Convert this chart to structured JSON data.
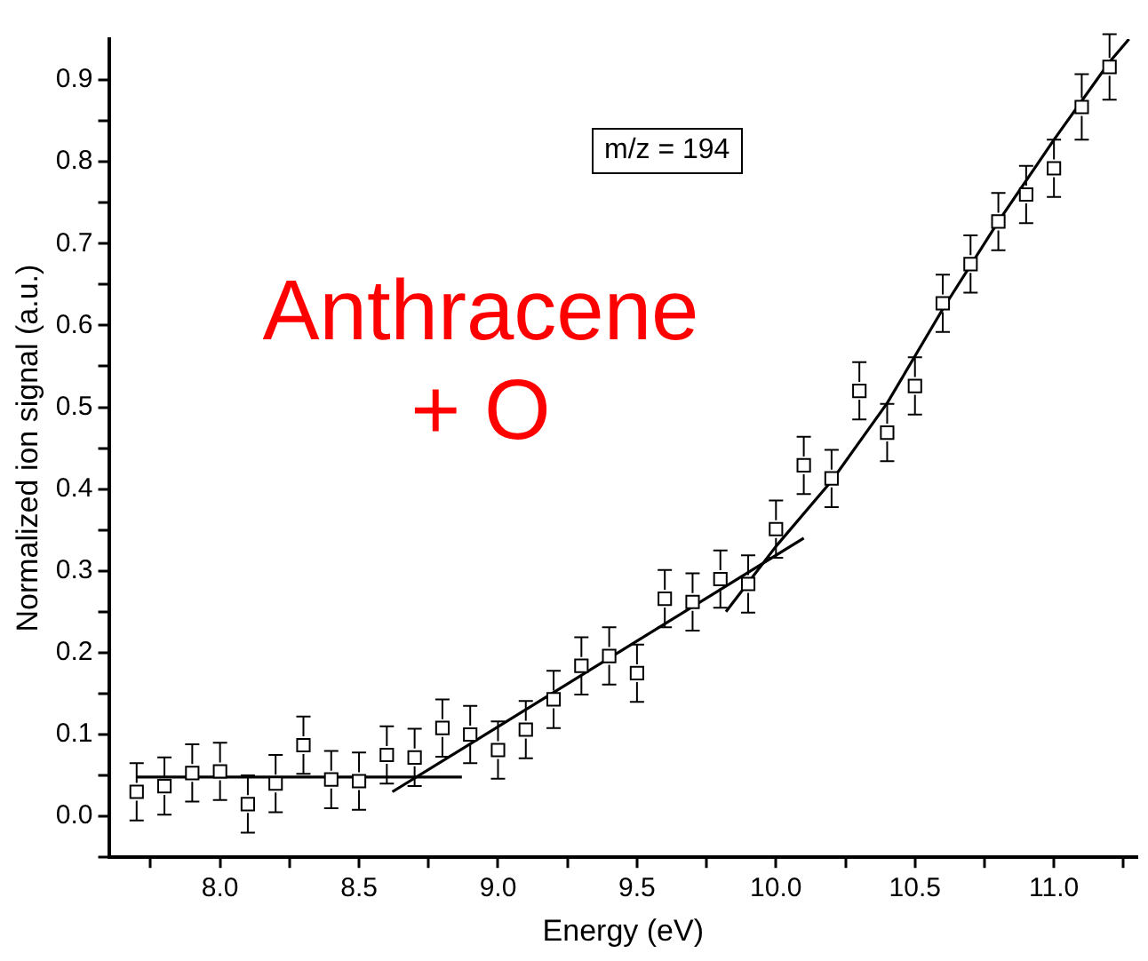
{
  "chart_data": {
    "type": "scatter",
    "xlabel": "Energy (eV)",
    "ylabel": "Normalized ion signal (a.u.)",
    "annotations": [
      "m/z = 194",
      "Anthracene + O"
    ],
    "xlim": [
      7.6,
      11.3
    ],
    "ylim": [
      -0.05,
      0.95
    ],
    "xticks": [
      {
        "value": 7.75,
        "label": null
      },
      {
        "value": 8,
        "label": "8.0"
      },
      {
        "value": 8.25,
        "label": null
      },
      8.5,
      {
        "value": 8.75,
        "label": null
      },
      {
        "value": 9,
        "label": "9.0"
      },
      {
        "value": 9.25,
        "label": null
      },
      9.5,
      {
        "value": 9.75,
        "label": null
      },
      {
        "value": 10,
        "label": "10.0"
      },
      {
        "value": 10.25,
        "label": null
      },
      10.5,
      {
        "value": 10.75,
        "label": null
      },
      {
        "value": 11,
        "label": "11.0"
      },
      {
        "value": 11.25,
        "label": null
      }
    ],
    "yticks": [
      {
        "value": -0.05,
        "label": null
      },
      {
        "value": 0,
        "label": "0.0"
      },
      {
        "value": 0.05,
        "label": null
      },
      0.1,
      {
        "value": 0.15,
        "label": null
      },
      0.2,
      {
        "value": 0.25,
        "label": null
      },
      0.3,
      {
        "value": 0.35,
        "label": null
      },
      0.4,
      {
        "value": 0.45,
        "label": null
      },
      0.5,
      {
        "value": 0.55,
        "label": null
      },
      0.6,
      {
        "value": 0.65,
        "label": null
      },
      0.7,
      {
        "value": 0.75,
        "label": null
      },
      0.8,
      {
        "value": 0.85,
        "label": null
      },
      0.9
    ],
    "grid": false,
    "legend": false,
    "marker": "square",
    "series": [
      {
        "color": "#000000",
        "x": [
          7.7,
          7.8,
          7.9,
          8.0,
          8.1,
          8.2,
          8.3,
          8.4,
          8.5,
          8.6,
          8.7,
          8.8,
          8.9,
          9.0,
          9.1,
          9.2,
          9.3,
          9.4,
          9.5,
          9.6,
          9.7,
          9.8,
          9.9,
          10.0,
          10.1,
          10.2,
          10.3,
          10.4,
          10.5,
          10.6,
          10.7,
          10.8,
          10.9,
          11.0,
          11.1,
          11.2
        ],
        "values": [
          0.03,
          0.037,
          0.053,
          0.055,
          0.015,
          0.04,
          0.087,
          0.045,
          0.043,
          0.075,
          0.072,
          0.108,
          0.1,
          0.081,
          0.106,
          0.143,
          0.184,
          0.196,
          0.175,
          0.266,
          0.262,
          0.29,
          0.284,
          0.351,
          0.429,
          0.413,
          0.52,
          0.469,
          0.526,
          0.627,
          0.675,
          0.727,
          0.76,
          0.792,
          0.867,
          0.916
        ],
        "errors": [
          0.035,
          0.035,
          0.035,
          0.035,
          0.035,
          0.035,
          0.035,
          0.035,
          0.035,
          0.035,
          0.035,
          0.035,
          0.035,
          0.035,
          0.035,
          0.035,
          0.035,
          0.035,
          0.035,
          0.035,
          0.035,
          0.035,
          0.035,
          0.035,
          0.035,
          0.035,
          0.035,
          0.035,
          0.035,
          0.035,
          0.035,
          0.035,
          0.035,
          0.035,
          0.04,
          0.04
        ]
      },
      {
        "type": "line",
        "color": "#000000",
        "marker": "none",
        "x": [
          7.7,
          8.87
        ],
        "values": [
          0.048,
          0.048
        ]
      },
      {
        "type": "line",
        "color": "#000000",
        "marker": "none",
        "x": [
          8.62,
          10.1
        ],
        "values": [
          0.03,
          0.34
        ]
      },
      {
        "type": "line",
        "color": "#000000",
        "marker": "none",
        "x": [
          9.82,
          10.0,
          10.2,
          10.4,
          10.6,
          10.8,
          11.0,
          11.2,
          11.27
        ],
        "values": [
          0.25,
          0.33,
          0.41,
          0.505,
          0.62,
          0.727,
          0.827,
          0.922,
          0.95
        ]
      }
    ]
  }
}
